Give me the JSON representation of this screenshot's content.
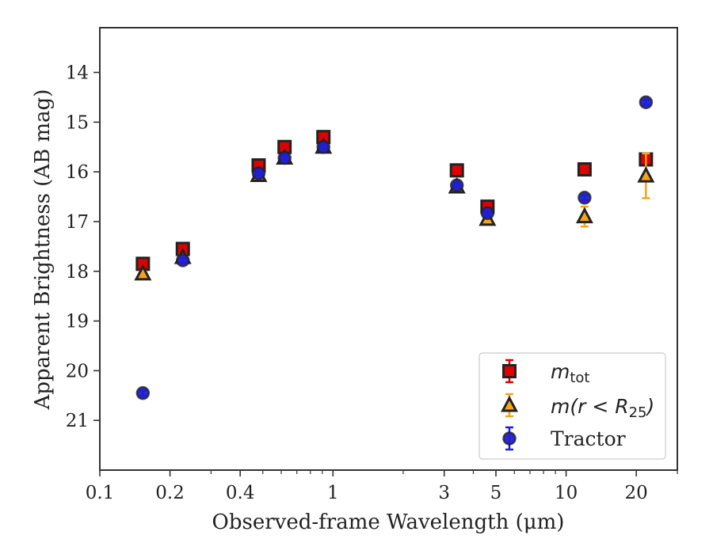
{
  "chart_data": {
    "type": "scatter",
    "xlabel": "Observed-frame Wavelength (μm)",
    "ylabel": "Apparent Brightness (AB mag)",
    "x_scale": "log",
    "xlim": [
      0.1,
      30
    ],
    "ylim": [
      22,
      13.1
    ],
    "y_inverted": true,
    "grid": false,
    "legend_position": "lower-right",
    "x_ticks": [
      {
        "value": 0.1,
        "label": "0.1"
      },
      {
        "value": 0.2,
        "label": "0.2"
      },
      {
        "value": 0.4,
        "label": "0.4"
      },
      {
        "value": 1,
        "label": "1"
      },
      {
        "value": 3,
        "label": "3"
      },
      {
        "value": 5,
        "label": "5"
      },
      {
        "value": 10,
        "label": "10"
      },
      {
        "value": 20,
        "label": "20"
      }
    ],
    "y_ticks": [
      {
        "value": 14,
        "label": "14"
      },
      {
        "value": 15,
        "label": "15"
      },
      {
        "value": 16,
        "label": "16"
      },
      {
        "value": 17,
        "label": "17"
      },
      {
        "value": 18,
        "label": "18"
      },
      {
        "value": 19,
        "label": "19"
      },
      {
        "value": 20,
        "label": "20"
      },
      {
        "value": 21,
        "label": "21"
      }
    ],
    "series": [
      {
        "name": "m_tot",
        "legend_main": "m",
        "legend_sub": "tot",
        "marker": "square",
        "face_color": "#e00000",
        "error_color": "#e00000",
        "points": [
          {
            "x": 0.153,
            "y": 17.85,
            "yerr": 0.05
          },
          {
            "x": 0.227,
            "y": 17.55,
            "yerr": 0.05
          },
          {
            "x": 0.48,
            "y": 15.87,
            "yerr": 0.05
          },
          {
            "x": 0.62,
            "y": 15.5,
            "yerr": 0.05
          },
          {
            "x": 0.91,
            "y": 15.3,
            "yerr": 0.05
          },
          {
            "x": 3.4,
            "y": 15.97,
            "yerr": 0.05
          },
          {
            "x": 4.6,
            "y": 16.7,
            "yerr": 0.05
          },
          {
            "x": 12.0,
            "y": 15.95,
            "yerr": 0.05
          },
          {
            "x": 22.0,
            "y": 15.75,
            "yerr": 0.1
          }
        ]
      },
      {
        "name": "m(r < R25)",
        "legend_text": "m(r < R",
        "legend_sub": "25",
        "legend_close": ")",
        "marker": "triangle",
        "face_color": "#f5a41a",
        "error_color": "#f5a41a",
        "points": [
          {
            "x": 0.153,
            "y": 18.05,
            "yerr": 0.05
          },
          {
            "x": 0.227,
            "y": 17.72,
            "yerr": 0.05
          },
          {
            "x": 0.48,
            "y": 16.07,
            "yerr": 0.05
          },
          {
            "x": 0.62,
            "y": 15.72,
            "yerr": 0.05
          },
          {
            "x": 0.91,
            "y": 15.5,
            "yerr": 0.05
          },
          {
            "x": 3.4,
            "y": 16.3,
            "yerr": 0.05
          },
          {
            "x": 4.6,
            "y": 16.95,
            "yerr": 0.05
          },
          {
            "x": 12.0,
            "y": 16.9,
            "yerr": 0.2
          },
          {
            "x": 22.0,
            "y": 16.08,
            "yerr": 0.45
          }
        ]
      },
      {
        "name": "Tractor",
        "marker": "circle",
        "face_color": "#1f1fd6",
        "error_color": "#1f1fd6",
        "points": [
          {
            "x": 0.153,
            "y": 20.45,
            "yerr": 0.05
          },
          {
            "x": 0.227,
            "y": 17.78,
            "yerr": 0.05
          },
          {
            "x": 0.48,
            "y": 16.03,
            "yerr": 0.05
          },
          {
            "x": 0.62,
            "y": 15.72,
            "yerr": 0.05
          },
          {
            "x": 0.91,
            "y": 15.5,
            "yerr": 0.05
          },
          {
            "x": 3.4,
            "y": 16.27,
            "yerr": 0.05
          },
          {
            "x": 4.6,
            "y": 16.83,
            "yerr": 0.05
          },
          {
            "x": 12.0,
            "y": 16.52,
            "yerr": 0.05
          },
          {
            "x": 22.0,
            "y": 14.6,
            "yerr": 0.05
          }
        ]
      }
    ]
  },
  "colors": {
    "edge": "#222222",
    "axis": "#333333"
  }
}
